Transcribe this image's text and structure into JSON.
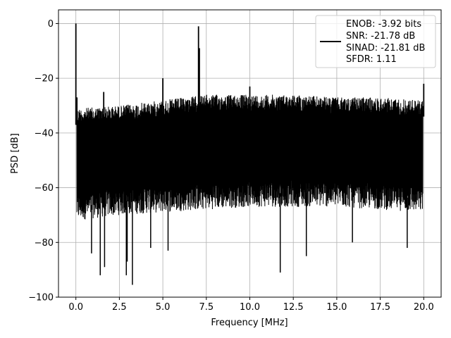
{
  "chart_data": {
    "type": "line",
    "title": "",
    "xlabel": "Frequency [MHz]",
    "ylabel": "PSD [dB]",
    "xlim": [
      -1.0,
      21.0
    ],
    "ylim": [
      -100,
      5
    ],
    "xticks": [
      0.0,
      2.5,
      5.0,
      7.5,
      10.0,
      12.5,
      15.0,
      17.5,
      20.0
    ],
    "xtick_labels": [
      "0.0",
      "2.5",
      "5.0",
      "7.5",
      "10.0",
      "12.5",
      "15.0",
      "17.5",
      "20.0"
    ],
    "yticks": [
      0,
      -20,
      -40,
      -60,
      -80,
      -100
    ],
    "ytick_labels": [
      "0",
      "−20",
      "−40",
      "−60",
      "−80",
      "−100"
    ],
    "grid": true,
    "legend_position": "top-right",
    "series": [
      {
        "color": "#000000",
        "noise_band": {
          "x": [
            0.05,
            2.5,
            5.0,
            7.5,
            10.0,
            12.5,
            15.0,
            17.5,
            19.95
          ],
          "upper_db": [
            -31,
            -30,
            -28,
            -26,
            -26,
            -26,
            -27,
            -27,
            -28
          ],
          "lower_db": [
            -72,
            -70,
            -69,
            -68,
            -67,
            -67,
            -67,
            -68,
            -69
          ]
        },
        "spikes": [
          {
            "x": 0.0,
            "y": 0.0
          },
          {
            "x": 0.06,
            "y": -27
          },
          {
            "x": 1.6,
            "y": -25
          },
          {
            "x": 5.0,
            "y": -20
          },
          {
            "x": 7.05,
            "y": -1.0
          },
          {
            "x": 7.1,
            "y": -9
          },
          {
            "x": 10.0,
            "y": -23
          },
          {
            "x": 20.0,
            "y": -22
          }
        ],
        "dips": [
          {
            "x": 1.4,
            "y": -92
          },
          {
            "x": 1.65,
            "y": -89
          },
          {
            "x": 2.9,
            "y": -92
          },
          {
            "x": 2.95,
            "y": -87
          },
          {
            "x": 3.25,
            "y": -95.5
          },
          {
            "x": 0.9,
            "y": -84
          },
          {
            "x": 4.3,
            "y": -82
          },
          {
            "x": 5.3,
            "y": -83
          },
          {
            "x": 11.75,
            "y": -91
          },
          {
            "x": 13.25,
            "y": -85
          },
          {
            "x": 15.9,
            "y": -80
          },
          {
            "x": 19.05,
            "y": -82
          }
        ]
      }
    ],
    "legend": {
      "entries": [
        "ENOB: -3.92 bits",
        "SNR: -21.78 dB",
        "SINAD: -21.81 dB",
        "SFDR: 1.11"
      ]
    }
  }
}
